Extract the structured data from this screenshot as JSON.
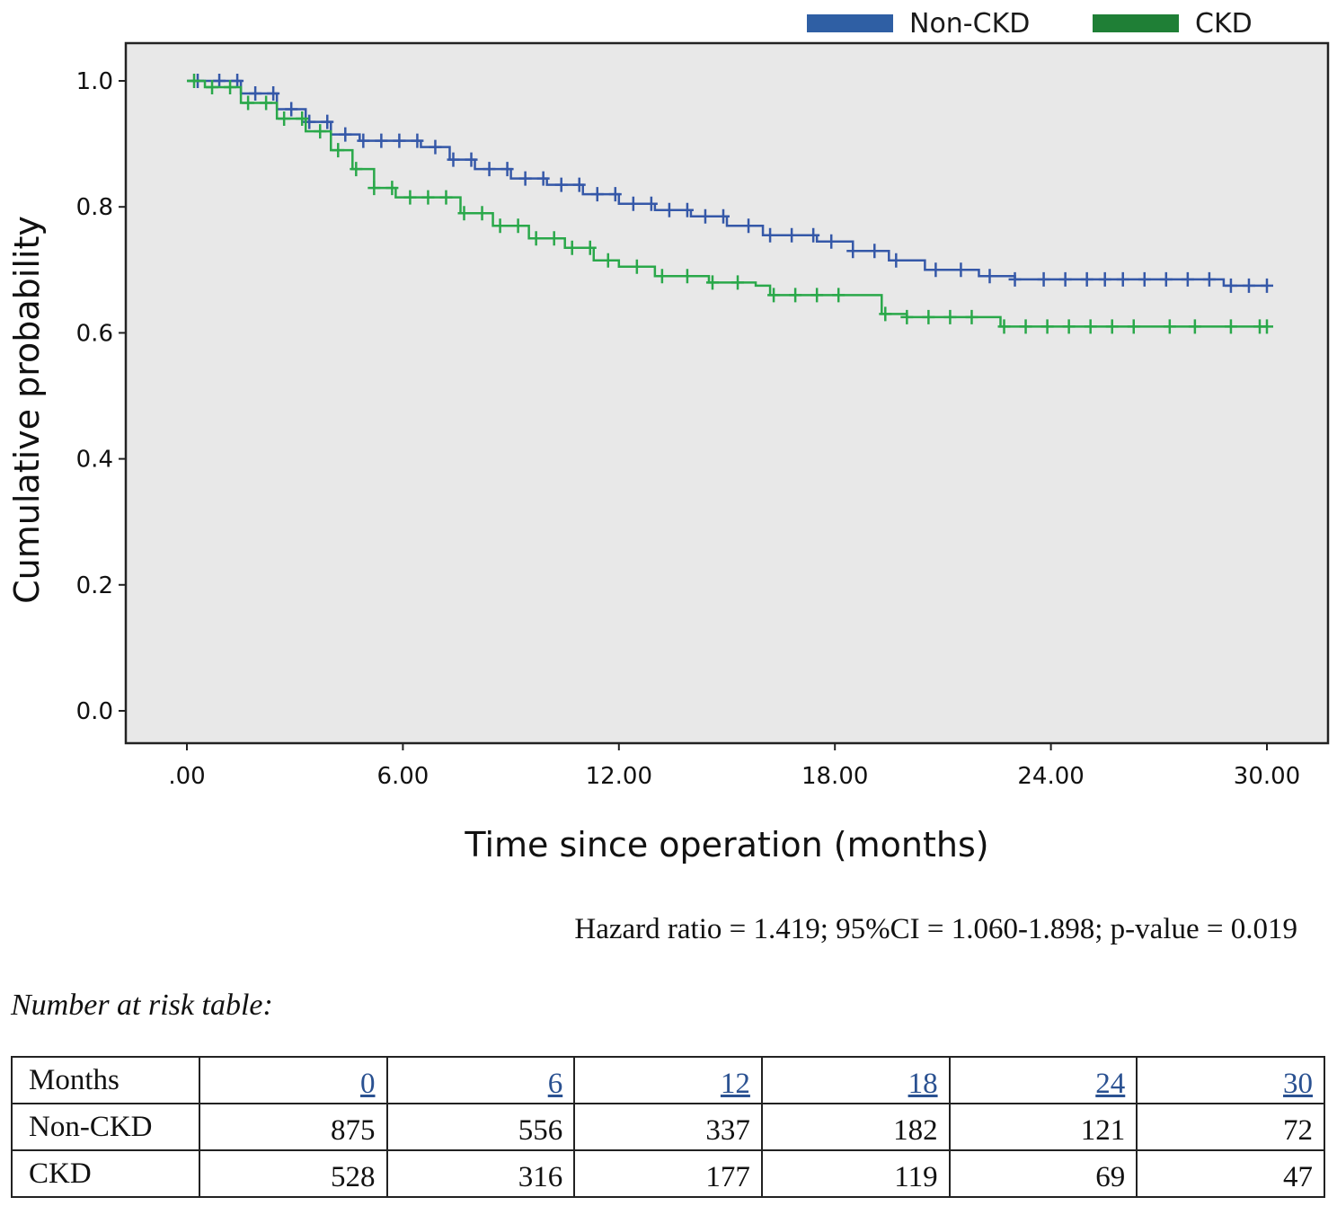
{
  "chart_data": {
    "type": "line",
    "subtype": "kaplan-meier",
    "title": "",
    "xlabel": "Time since operation (months)",
    "ylabel": "Cumulative probability",
    "xlim": [
      0,
      30
    ],
    "ylim": [
      0,
      1
    ],
    "x_ticks": [
      ".00",
      "6.00",
      "12.00",
      "18.00",
      "24.00",
      "30.00"
    ],
    "x_tick_values": [
      0,
      6,
      12,
      18,
      24,
      30
    ],
    "y_ticks": [
      "0.0",
      "0.2",
      "0.4",
      "0.6",
      "0.8",
      "1.0"
    ],
    "y_tick_values": [
      0,
      0.2,
      0.4,
      0.6,
      0.8,
      1.0
    ],
    "legend_position": "top-right",
    "series": [
      {
        "name": "Non-CKD",
        "color": "#3558a8",
        "points": [
          [
            0,
            1.0
          ],
          [
            0.8,
            1.0
          ],
          [
            1.5,
            0.98
          ],
          [
            2.5,
            0.955
          ],
          [
            3.3,
            0.935
          ],
          [
            4.0,
            0.915
          ],
          [
            4.8,
            0.905
          ],
          [
            5.5,
            0.905
          ],
          [
            6.5,
            0.895
          ],
          [
            7.3,
            0.875
          ],
          [
            8.0,
            0.86
          ],
          [
            9.0,
            0.845
          ],
          [
            10.0,
            0.835
          ],
          [
            11.0,
            0.82
          ],
          [
            12.0,
            0.805
          ],
          [
            13.0,
            0.795
          ],
          [
            14.0,
            0.785
          ],
          [
            15.0,
            0.77
          ],
          [
            16.0,
            0.755
          ],
          [
            17.5,
            0.745
          ],
          [
            18.5,
            0.73
          ],
          [
            19.5,
            0.715
          ],
          [
            20.5,
            0.7
          ],
          [
            22.0,
            0.69
          ],
          [
            23.0,
            0.685
          ],
          [
            25.0,
            0.685
          ],
          [
            28.0,
            0.685
          ],
          [
            28.8,
            0.675
          ],
          [
            30.0,
            0.675
          ]
        ],
        "censor_times": [
          0.3,
          0.9,
          1.4,
          1.9,
          2.4,
          2.9,
          3.4,
          3.9,
          4.4,
          4.9,
          5.4,
          5.9,
          6.4,
          6.9,
          7.4,
          7.9,
          8.4,
          8.9,
          9.4,
          9.9,
          10.4,
          10.9,
          11.4,
          11.9,
          12.4,
          12.9,
          13.4,
          13.9,
          14.4,
          14.9,
          15.6,
          16.2,
          16.8,
          17.4,
          17.9,
          18.5,
          19.1,
          19.7,
          20.8,
          21.5,
          22.3,
          23.0,
          23.8,
          24.4,
          25.0,
          25.5,
          26.0,
          26.6,
          27.2,
          27.8,
          28.4,
          29.0,
          29.5,
          30.0
        ]
      },
      {
        "name": "CKD",
        "color": "#2aa84a",
        "points": [
          [
            0,
            1.0
          ],
          [
            0.5,
            0.99
          ],
          [
            1.5,
            0.965
          ],
          [
            2.5,
            0.94
          ],
          [
            3.3,
            0.92
          ],
          [
            4.0,
            0.89
          ],
          [
            4.6,
            0.86
          ],
          [
            5.2,
            0.83
          ],
          [
            5.8,
            0.815
          ],
          [
            6.5,
            0.815
          ],
          [
            7.1,
            0.815
          ],
          [
            7.6,
            0.79
          ],
          [
            8.5,
            0.77
          ],
          [
            9.5,
            0.75
          ],
          [
            10.5,
            0.735
          ],
          [
            11.3,
            0.715
          ],
          [
            12.0,
            0.705
          ],
          [
            13.0,
            0.69
          ],
          [
            14.5,
            0.68
          ],
          [
            15.8,
            0.675
          ],
          [
            16.2,
            0.66
          ],
          [
            18.8,
            0.66
          ],
          [
            19.3,
            0.63
          ],
          [
            20.0,
            0.625
          ],
          [
            22.2,
            0.625
          ],
          [
            22.6,
            0.61
          ],
          [
            30.0,
            0.61
          ]
        ],
        "censor_times": [
          0.2,
          0.7,
          1.2,
          1.7,
          2.2,
          2.7,
          3.2,
          3.7,
          4.2,
          4.7,
          5.2,
          5.7,
          6.2,
          6.7,
          7.2,
          7.7,
          8.2,
          8.7,
          9.2,
          9.7,
          10.2,
          10.7,
          11.2,
          11.7,
          12.5,
          13.2,
          13.9,
          14.6,
          15.3,
          16.3,
          16.9,
          17.5,
          18.1,
          19.4,
          20.0,
          20.6,
          21.2,
          21.8,
          22.7,
          23.3,
          23.9,
          24.5,
          25.1,
          25.7,
          26.3,
          27.3,
          28.0,
          29.0,
          29.8,
          30.0
        ]
      }
    ]
  },
  "stats_text": "Hazard ratio = 1.419; 95%CI = 1.060-1.898; p-value = 0.019",
  "risk_table": {
    "caption": "Number at risk table:",
    "header_label": "Months",
    "months": [
      "0",
      "6",
      "12",
      "18",
      "24",
      "30"
    ],
    "rows": [
      {
        "label": "Non-CKD",
        "values": [
          "875",
          "556",
          "337",
          "182",
          "121",
          "72"
        ]
      },
      {
        "label": "CKD",
        "values": [
          "528",
          "316",
          "177",
          "119",
          "69",
          "47"
        ]
      }
    ]
  },
  "colors": {
    "plot_background": "#e8e8e8",
    "non_ckd": "#3558a8",
    "ckd": "#2aa84a",
    "legend_non_ckd": "#2f5fa4",
    "legend_ckd": "#1f7f36"
  }
}
